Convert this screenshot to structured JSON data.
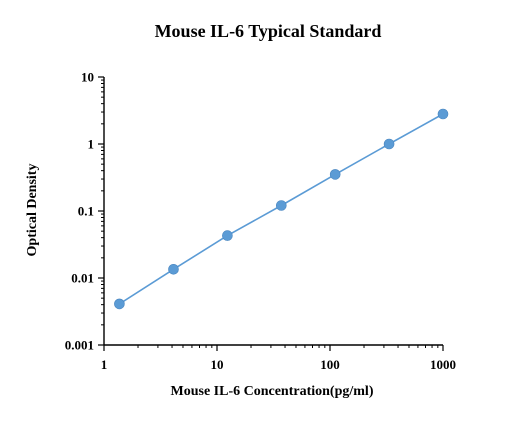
{
  "chart_data": {
    "type": "scatter",
    "title": "Mouse IL-6 Typical Standard",
    "xlabel": "Mouse IL-6 Concentration(pg/ml)",
    "ylabel": "Optical Density",
    "x_scale": "log",
    "y_scale": "log",
    "xlim": [
      1,
      1000
    ],
    "ylim": [
      0.001,
      10
    ],
    "x_ticks": [
      "1",
      "10",
      "100",
      "1000"
    ],
    "y_ticks": [
      "0.001",
      "0.01",
      "0.1",
      "1",
      "10"
    ],
    "grid": false,
    "legend": "none",
    "series": [
      {
        "color": "#5b9bd5",
        "marker": "circle",
        "line": "fit",
        "x": [
          1.37,
          4.12,
          12.35,
          37.04,
          111.1,
          333.3,
          1000
        ],
        "y": [
          0.0041,
          0.0135,
          0.043,
          0.121,
          0.352,
          1.0,
          2.8
        ]
      }
    ]
  }
}
